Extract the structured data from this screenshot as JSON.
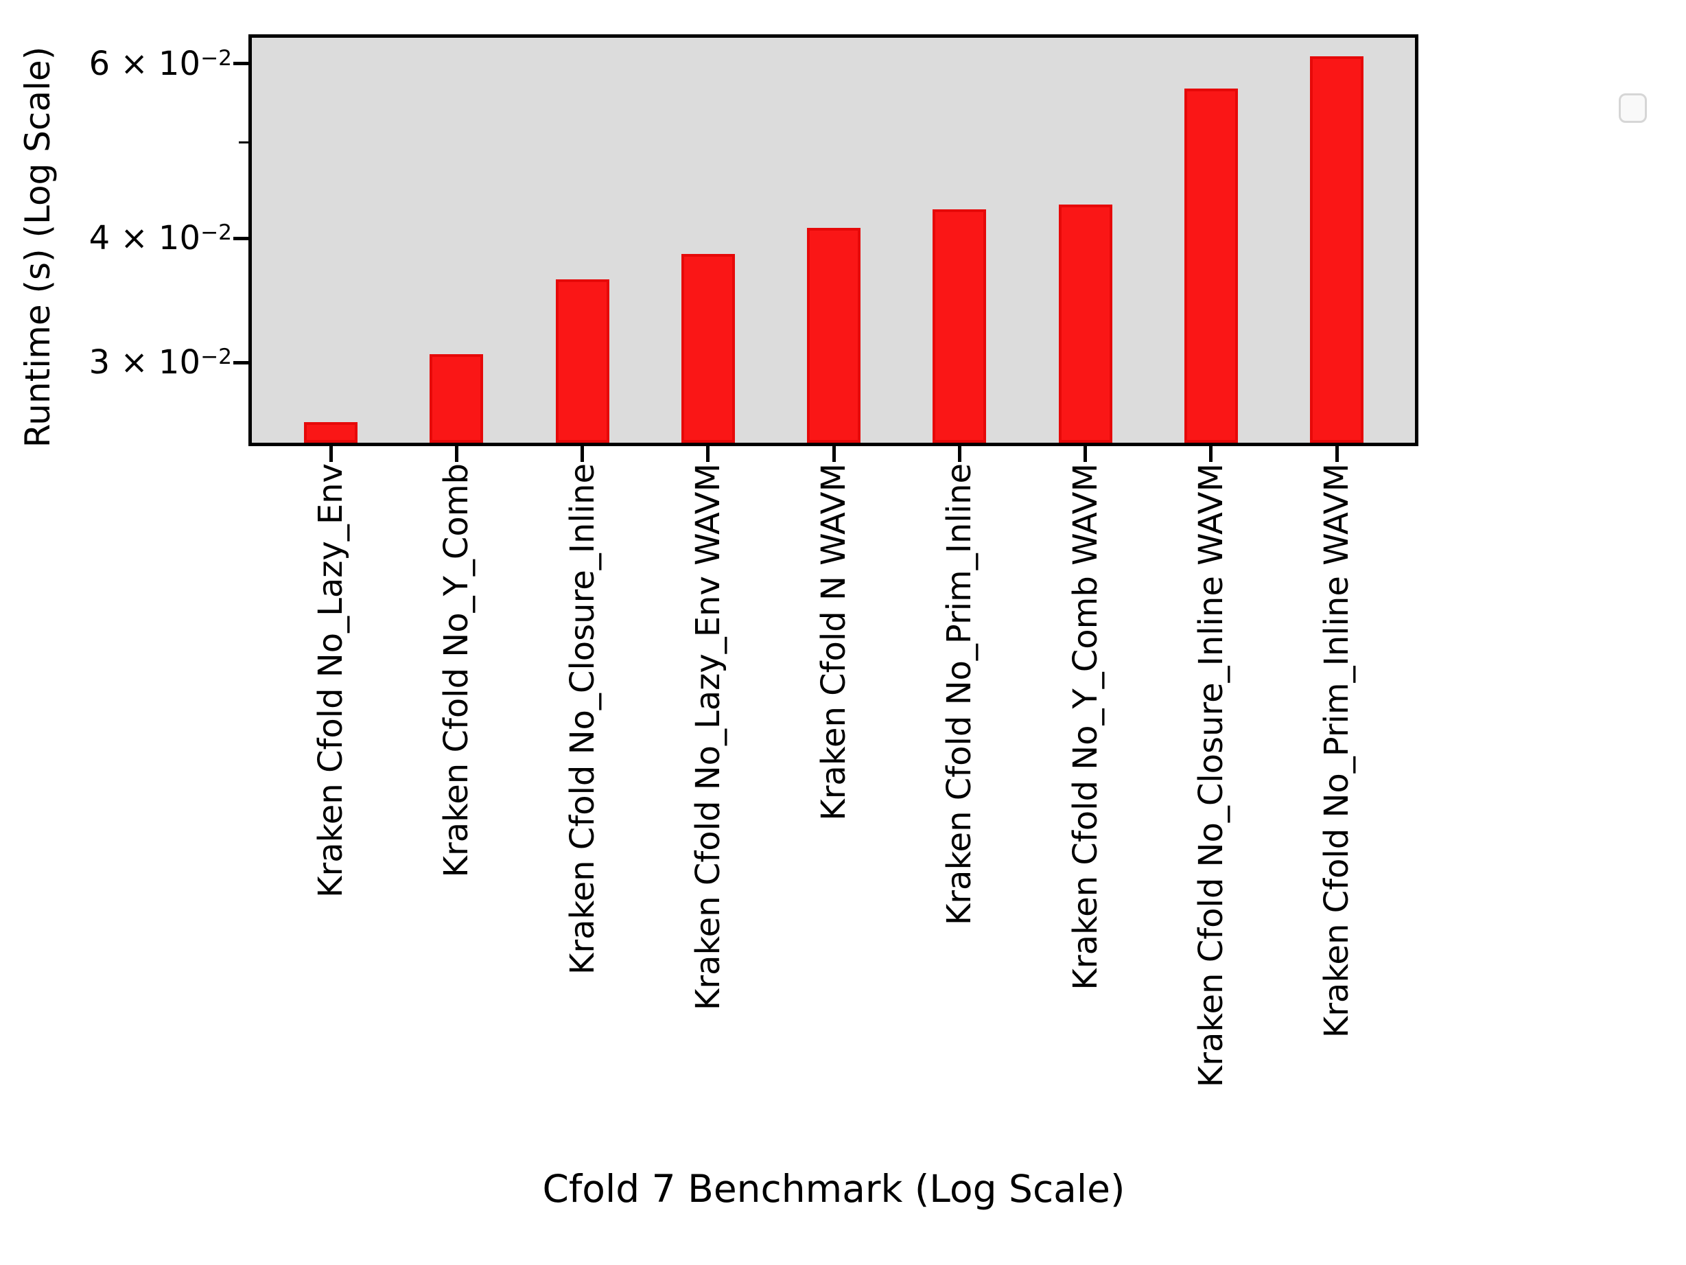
{
  "chart_data": {
    "type": "bar",
    "title": "",
    "xlabel": "Cfold 7 Benchmark (Log Scale)",
    "ylabel": "Runtime (s) (Log Scale)",
    "yscale": "log",
    "ylim": [
      0.0249,
      0.0637
    ],
    "grid": false,
    "categories": [
      "Kraken Cfold No_Lazy_Env",
      "Kraken Cfold No_Y_Comb",
      "Kraken Cfold No_Closure_Inline",
      "Kraken Cfold No_Lazy_Env WAVM",
      "Kraken Cfold N WAVM",
      "Kraken Cfold No_Prim_Inline",
      "Kraken Cfold No_Y_Comb WAVM",
      "Kraken Cfold No_Closure_Inline WAVM",
      "Kraken Cfold No_Prim_Inline WAVM"
    ],
    "values": [
      0.0261,
      0.0306,
      0.0364,
      0.0386,
      0.041,
      0.0428,
      0.0433,
      0.0566,
      0.061
    ],
    "value_unit": "s",
    "yticks_major": [
      {
        "value": 0.06,
        "mantissa": "6 × 10",
        "exponent": "−2"
      },
      {
        "value": 0.04,
        "mantissa": "4 × 10",
        "exponent": "−2"
      },
      {
        "value": 0.03,
        "mantissa": "3 × 10",
        "exponent": "−2"
      }
    ],
    "yticks_minor": [
      0.05
    ],
    "legend": {
      "visible": true,
      "position": "upper right",
      "entries": []
    },
    "colors": {
      "bar_fill": "#fa1616",
      "bar_edge": "#e60909",
      "plot_background": "#dcdcdc",
      "figure_background": "#ffffff",
      "axis": "#000000",
      "legend_background": "#f9f9f9",
      "legend_border": "#d6d6d6"
    }
  }
}
